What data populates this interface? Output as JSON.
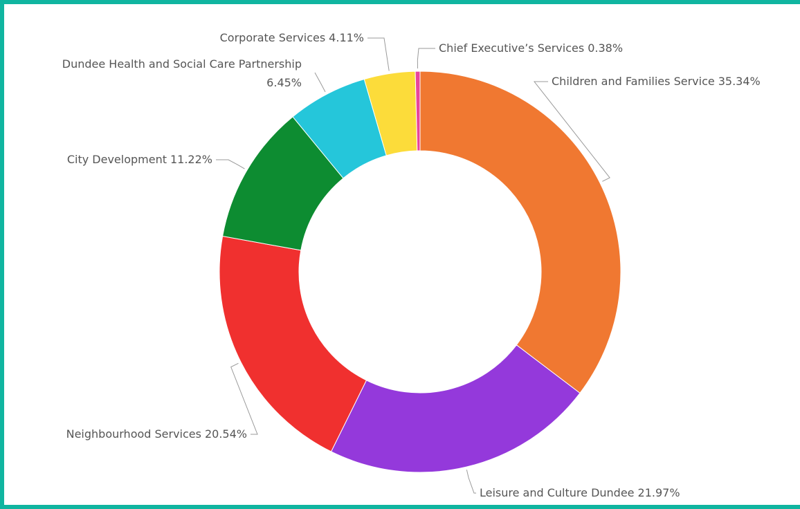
{
  "chart_data": {
    "type": "donut",
    "categories": [
      "Children and Families Service",
      "Leisure and Culture Dundee",
      "Neighbourhood Services",
      "City Development",
      "Dundee Health and Social Care Partnership",
      "Corporate Services",
      "Chief Executive’s Services"
    ],
    "values": [
      35.34,
      21.97,
      20.54,
      11.22,
      6.45,
      4.11,
      0.38
    ],
    "value_labels": [
      "35.34%",
      "21.97%",
      "20.54%",
      "11.22%",
      "6.45%",
      "4.11%",
      "0.38%"
    ],
    "colors": [
      "#F07831",
      "#9439DB",
      "#F0302F",
      "#0D8C31",
      "#25C6DA",
      "#FCDC3A",
      "#E8449B"
    ]
  }
}
